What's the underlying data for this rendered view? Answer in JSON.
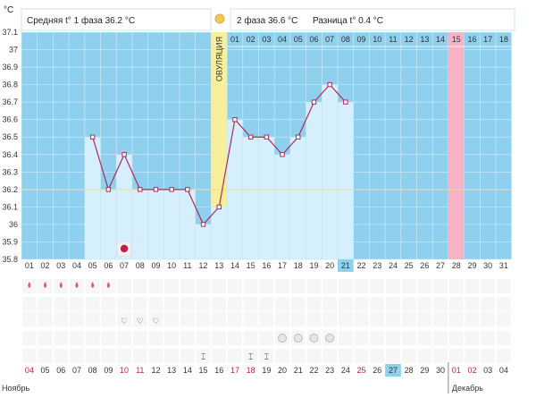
{
  "chart_data": {
    "type": "line",
    "unit_label": "°C",
    "y_ticks": [
      37.1,
      37,
      36.9,
      36.8,
      36.7,
      36.6,
      36.5,
      36.4,
      36.3,
      36.2,
      36.1,
      36,
      35.9,
      35.8
    ],
    "ylim": [
      35.8,
      37.1
    ],
    "header_left": "Средняя t° 1 фаза 36.2 °C",
    "header_right_phase": "2 фаза 36.6 °C",
    "header_right_diff": "Разница t° 0.4 °C",
    "ovulation_label": "ОВУЛЯЦИЯ",
    "cycle_days": [
      "01",
      "02",
      "03",
      "04",
      "05",
      "06",
      "07",
      "08",
      "09",
      "10",
      "11",
      "12",
      "13",
      "14",
      "15",
      "16",
      "17",
      "18",
      "19",
      "20",
      "21",
      "22",
      "23",
      "24",
      "25",
      "26",
      "27",
      "28",
      "29",
      "30",
      "31"
    ],
    "phase2_days": [
      "01",
      "02",
      "03",
      "04",
      "05",
      "06",
      "07",
      "08",
      "09",
      "10",
      "11",
      "12",
      "13",
      "14",
      "15",
      "16",
      "17",
      "18"
    ],
    "ovulation_day": 13,
    "current_day": 21,
    "highlight_day": 28,
    "coverline": 36.2,
    "temperatures": [
      null,
      null,
      null,
      null,
      36.5,
      36.2,
      36.4,
      36.2,
      36.2,
      36.2,
      36.2,
      36.0,
      36.1,
      36.6,
      36.5,
      36.5,
      36.4,
      36.5,
      36.7,
      36.8,
      36.7
    ],
    "dates": [
      "04",
      "05",
      "06",
      "07",
      "08",
      "09",
      "10",
      "11",
      "12",
      "13",
      "14",
      "15",
      "16",
      "17",
      "18",
      "19",
      "20",
      "21",
      "22",
      "23",
      "24",
      "25",
      "26",
      "27",
      "28",
      "29",
      "30",
      "01",
      "02",
      "03",
      "04"
    ],
    "date_colors": [
      "#c0204a",
      "#333333",
      "#333333",
      "#333333",
      "#333333",
      "#333333",
      "#c0204a",
      "#c0204a",
      "#333333",
      "#333333",
      "#333333",
      "#333333",
      "#333333",
      "#c0204a",
      "#c0204a",
      "#333333",
      "#333333",
      "#333333",
      "#333333",
      "#333333",
      "#333333",
      "#c0204a",
      "#333333",
      "#333333",
      "#333333",
      "#333333",
      "#333333",
      "#c0204a",
      "#c0204a",
      "#333333",
      "#333333"
    ],
    "month_left": "Ноябрь",
    "month_right": "Декабрь",
    "bleeding_days": [
      1,
      2,
      3,
      4,
      5,
      6
    ],
    "heart_days": [
      7,
      8,
      9
    ],
    "pill_days": [
      17,
      18,
      19,
      20
    ],
    "drop_days": [
      12,
      15,
      16
    ],
    "moon_day": 7
  },
  "colors": {
    "plot_bg": "#8fd0ee",
    "bar_fill": "#d6effc",
    "line": "#b02a55",
    "ovulation": "#f7ef9a",
    "highlight": "#f6b3c6",
    "current": "#8fd0ee"
  }
}
